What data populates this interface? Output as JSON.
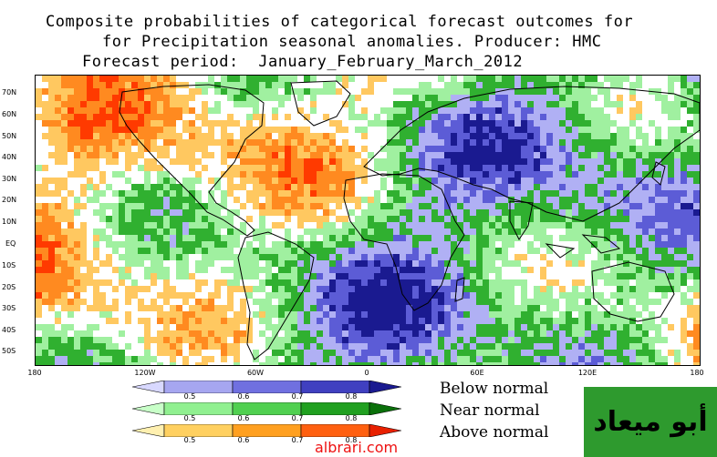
{
  "title": {
    "line1": "Composite probabilities of categorical forecast outcomes for",
    "line2": "for Precipitation seasonal anomalies. Producer: HMC",
    "line3": "Forecast period:  January_February_March_2012"
  },
  "map": {
    "lat_labels": [
      "70N",
      "60N",
      "50N",
      "40N",
      "30N",
      "20N",
      "10N",
      "EQ",
      "10S",
      "20S",
      "30S",
      "40S",
      "50S"
    ],
    "lon_labels": [
      "180",
      "120W",
      "60W",
      "0",
      "60E",
      "120E",
      "180"
    ]
  },
  "legend": {
    "rows": [
      {
        "label": "Below normal",
        "colors": [
          "#d8d8ff",
          "#a6a6f0",
          "#7070e0",
          "#4040c0",
          "#1a1a90"
        ],
        "ticks": [
          "0.5",
          "0.6",
          "0.7",
          "0.8"
        ]
      },
      {
        "label": "Near normal",
        "colors": [
          "#c8ffc8",
          "#90f090",
          "#50d050",
          "#20a020",
          "#0a700a"
        ],
        "ticks": [
          "0.5",
          "0.6",
          "0.7",
          "0.8"
        ]
      },
      {
        "label": "Above normal",
        "colors": [
          "#fff0b0",
          "#ffd060",
          "#ffa020",
          "#ff6010",
          "#e82000"
        ],
        "ticks": [
          "0.5",
          "0.6",
          "0.7",
          "0.8"
        ]
      }
    ]
  },
  "watermark": {
    "text": "أبو ميعاد"
  },
  "site": {
    "text": "albrari.com"
  },
  "colors": {
    "below_dark": "#1a1a90",
    "below_mid": "#5c5cd6",
    "below_light": "#b0b0f4",
    "near_mid": "#30b030",
    "near_light": "#a0f0a0",
    "above_light": "#ffc860",
    "above_mid": "#ff8a20",
    "above_dark": "#ff3a00",
    "neutral": "#ffffff"
  }
}
